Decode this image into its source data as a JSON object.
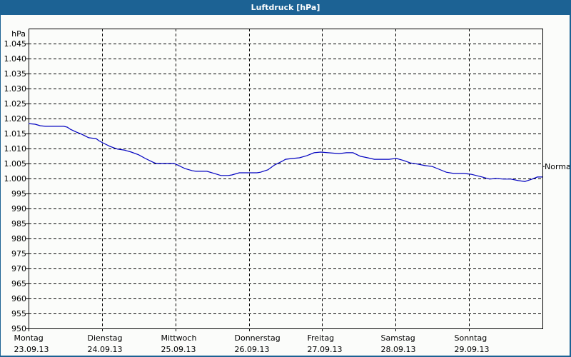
{
  "window": {
    "title": "Luftdruck [hPa]"
  },
  "chart_data": {
    "type": "line",
    "title": "Luftdruck [hPa]",
    "xlabel": "",
    "ylabel": "hPa",
    "ylim": [
      950,
      1048
    ],
    "y_ticks": [
      "1.045",
      "1.040",
      "1.035",
      "1.030",
      "1.025",
      "1.020",
      "1.015",
      "1.010",
      "1.005",
      "1.000",
      "995",
      "990",
      "985",
      "980",
      "975",
      "970",
      "965",
      "960",
      "955",
      "950"
    ],
    "x_ticks": [
      {
        "day": "Montag",
        "date": "23.09.13"
      },
      {
        "day": "Dienstag",
        "date": "24.09.13"
      },
      {
        "day": "Mittwoch",
        "date": "25.09.13"
      },
      {
        "day": "Donnerstag",
        "date": "26.09.13"
      },
      {
        "day": "Freitag",
        "date": "27.09.13"
      },
      {
        "day": "Samstag",
        "date": "28.09.13"
      },
      {
        "day": "Sonntag",
        "date": "29.09.13"
      }
    ],
    "grid": true,
    "annotation": {
      "text": "Normal",
      "value": 1004
    },
    "series": [
      {
        "name": "Luftdruck",
        "color": "#0000c0",
        "x_day_fraction": [
          0.0,
          0.09,
          0.16,
          0.23,
          0.28,
          0.48,
          0.53,
          0.57,
          0.65,
          0.72,
          0.82,
          0.92,
          0.96,
          1.01,
          1.11,
          1.21,
          1.3,
          1.4,
          1.5,
          1.59,
          1.69,
          1.74,
          1.89,
          1.98,
          2.03,
          2.13,
          2.23,
          2.28,
          2.43,
          2.53,
          2.62,
          2.72,
          2.77,
          2.87,
          2.96,
          3.11,
          3.16,
          3.26,
          3.35,
          3.45,
          3.5,
          3.6,
          3.69,
          3.79,
          3.89,
          3.98,
          4.08,
          4.23,
          4.33,
          4.42,
          4.52,
          4.62,
          4.71,
          4.91,
          5.01,
          5.11,
          5.2,
          5.3,
          5.4,
          5.5,
          5.59,
          5.69,
          5.79,
          5.93,
          6.03,
          6.18,
          6.28,
          6.37,
          6.47,
          6.57,
          6.67,
          6.76,
          6.86,
          6.93,
          7.0
        ],
        "values": [
          1018.3,
          1018.1,
          1017.6,
          1017.4,
          1017.4,
          1017.4,
          1017.1,
          1016.4,
          1015.5,
          1014.8,
          1013.6,
          1013.3,
          1012.6,
          1011.9,
          1010.7,
          1009.8,
          1009.5,
          1008.8,
          1007.9,
          1006.7,
          1005.5,
          1005.0,
          1005.0,
          1005.0,
          1004.5,
          1003.3,
          1002.6,
          1002.4,
          1002.4,
          1001.7,
          1001.0,
          1001.0,
          1001.2,
          1001.9,
          1001.9,
          1001.9,
          1002.1,
          1002.9,
          1004.5,
          1005.7,
          1006.4,
          1006.7,
          1006.9,
          1007.6,
          1008.6,
          1008.8,
          1008.6,
          1008.3,
          1008.6,
          1008.6,
          1007.4,
          1006.9,
          1006.4,
          1006.4,
          1006.7,
          1006.0,
          1005.2,
          1004.8,
          1004.3,
          1004.0,
          1003.1,
          1002.1,
          1001.7,
          1001.7,
          1001.4,
          1000.5,
          999.8,
          1000.0,
          999.8,
          999.8,
          999.3,
          999.0,
          999.8,
          1000.5,
          1000.5
        ]
      }
    ]
  }
}
